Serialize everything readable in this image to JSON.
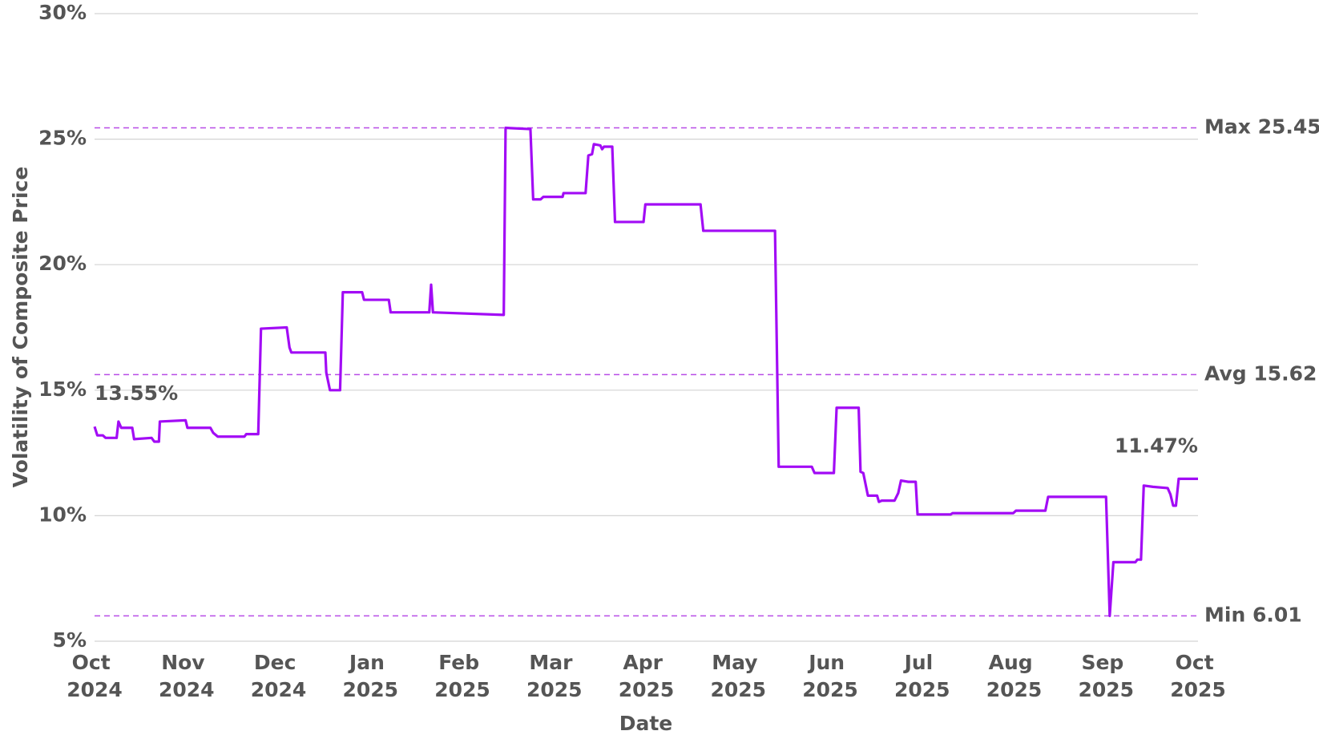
{
  "chart_data": {
    "type": "line",
    "y_axis_label": "Volatility of Composite Price",
    "x_axis_label": "Date",
    "color": "#a20cf5",
    "grid": true,
    "xlim": [
      0,
      12
    ],
    "xticks": [
      {
        "value": 0,
        "label": "Oct 2024"
      },
      {
        "value": 1,
        "label": "Nov 2024"
      },
      {
        "value": 2,
        "label": "Dec 2024"
      },
      {
        "value": 3,
        "label": "Jan 2025"
      },
      {
        "value": 4,
        "label": "Feb 2025"
      },
      {
        "value": 5,
        "label": "Mar 2025"
      },
      {
        "value": 6,
        "label": "Apr 2025"
      },
      {
        "value": 7,
        "label": "May 2025"
      },
      {
        "value": 8,
        "label": "Jun 2025"
      },
      {
        "value": 9,
        "label": "Jul 2025"
      },
      {
        "value": 10,
        "label": "Aug 2025"
      },
      {
        "value": 11,
        "label": "Sep 2025"
      },
      {
        "value": 12,
        "label": "Oct 2025"
      }
    ],
    "ylim": [
      5,
      30
    ],
    "yticks": [
      {
        "value": 5,
        "label": "5%"
      },
      {
        "value": 10,
        "label": "10%"
      },
      {
        "value": 15,
        "label": "15%"
      },
      {
        "value": 20,
        "label": "20%"
      },
      {
        "value": 25,
        "label": "25%"
      },
      {
        "value": 30,
        "label": "30%"
      }
    ],
    "reference_lines": [
      {
        "label": "Max 25.45",
        "value": 25.45,
        "color": "#b84ce6"
      },
      {
        "label": "Avg 15.62",
        "value": 15.62,
        "color": "#b84ce6"
      },
      {
        "label": "Min 6.01",
        "value": 6.01,
        "color": "#b84ce6"
      }
    ],
    "annotations": [
      {
        "text": "13.55%",
        "x": 0,
        "y": 13.55
      },
      {
        "text": "11.47%",
        "x": 12,
        "y": 11.47
      }
    ],
    "x": [
      0,
      0.03,
      0.09,
      0.12,
      0.24,
      0.26,
      0.29,
      0.41,
      0.43,
      0.62,
      0.65,
      0.7,
      0.71,
      0.99,
      1.01,
      1.26,
      1.29,
      1.34,
      1.63,
      1.65,
      1.78,
      1.81,
      2.09,
      2.12,
      2.14,
      2.51,
      2.52,
      2.56,
      2.67,
      2.7,
      2.91,
      2.93,
      3.2,
      3.22,
      3.64,
      3.66,
      3.68,
      4.45,
      4.47,
      4.74,
      4.77,
      4.85,
      4.88,
      5.09,
      5.1,
      5.34,
      5.37,
      5.41,
      5.43,
      5.5,
      5.52,
      5.54,
      5.63,
      5.66,
      5.97,
      5.99,
      6.59,
      6.62,
      7.4,
      7.44,
      7.8,
      7.83,
      8.04,
      8.07,
      8.31,
      8.33,
      8.36,
      8.41,
      8.51,
      8.53,
      8.56,
      8.7,
      8.74,
      8.77,
      8.85,
      8.93,
      8.95,
      9.31,
      9.33,
      9.99,
      10.02,
      10.34,
      10.37,
      11.0,
      11.04,
      11.08,
      11.32,
      11.34,
      11.38,
      11.41,
      11.51,
      11.67,
      11.7,
      11.73,
      11.76,
      11.79,
      12.0
    ],
    "values": [
      13.55,
      13.2,
      13.2,
      13.1,
      13.1,
      13.75,
      13.5,
      13.5,
      13.05,
      13.1,
      12.95,
      12.95,
      13.75,
      13.8,
      13.5,
      13.5,
      13.3,
      13.15,
      13.15,
      13.25,
      13.25,
      17.45,
      17.5,
      16.7,
      16.5,
      16.5,
      15.7,
      15.0,
      15.0,
      18.9,
      18.9,
      18.6,
      18.6,
      18.1,
      18.1,
      19.2,
      18.1,
      18.0,
      25.45,
      25.4,
      22.6,
      22.6,
      22.7,
      22.7,
      22.85,
      22.85,
      24.35,
      24.4,
      24.8,
      24.75,
      24.6,
      24.7,
      24.7,
      21.7,
      21.7,
      22.4,
      22.4,
      21.35,
      21.35,
      11.95,
      11.95,
      11.7,
      11.7,
      14.3,
      14.3,
      11.75,
      11.7,
      10.8,
      10.8,
      10.55,
      10.6,
      10.6,
      10.9,
      11.4,
      11.35,
      11.35,
      10.05,
      10.05,
      10.1,
      10.1,
      10.2,
      10.2,
      10.75,
      10.75,
      6.01,
      8.15,
      8.15,
      8.25,
      8.25,
      11.2,
      11.15,
      11.1,
      10.85,
      10.4,
      10.4,
      11.47,
      11.47
    ]
  }
}
